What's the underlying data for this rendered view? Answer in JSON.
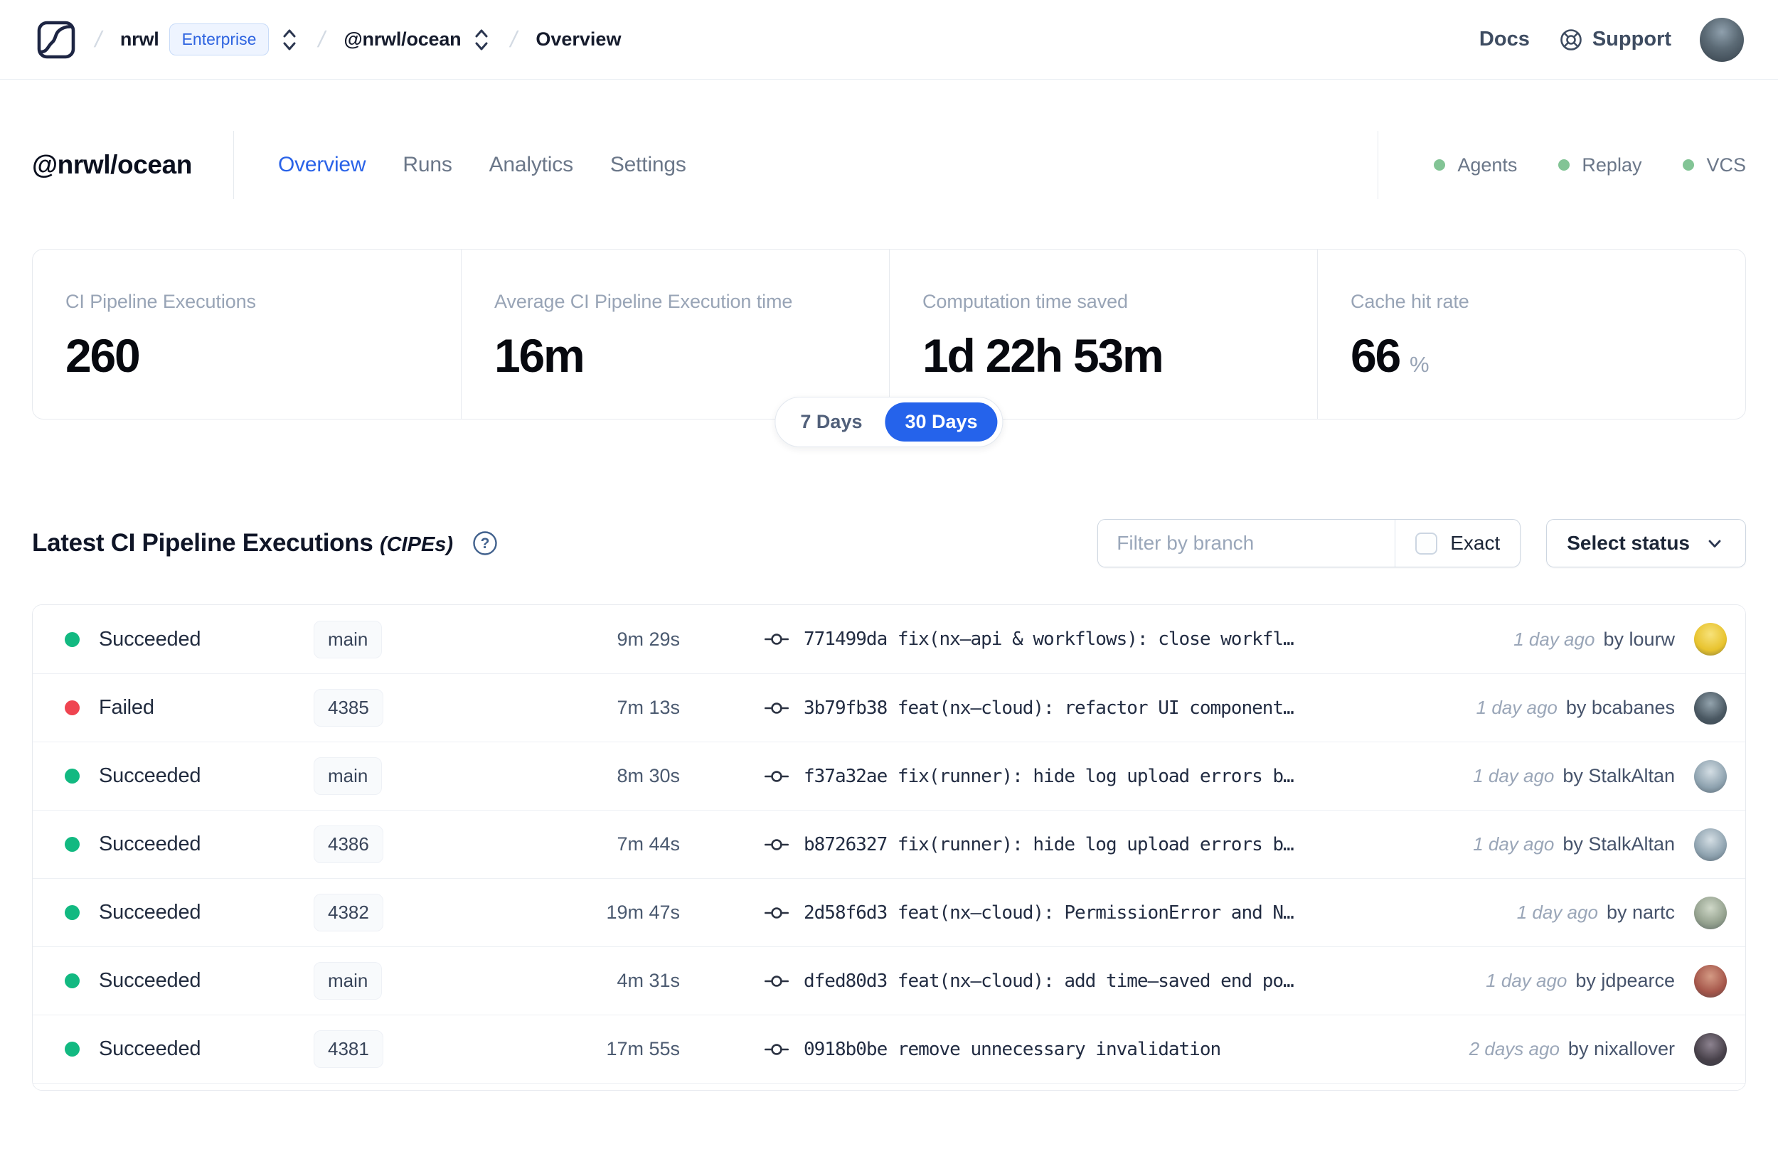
{
  "nav": {
    "breadcrumb": {
      "workspace": "nrwl",
      "plan_badge": "Enterprise",
      "project": "@nrwl/ocean",
      "page": "Overview"
    },
    "links": {
      "docs": "Docs",
      "support": "Support"
    }
  },
  "header": {
    "title": "@nrwl/ocean",
    "tabs": [
      {
        "label": "Overview",
        "active": true
      },
      {
        "label": "Runs",
        "active": false
      },
      {
        "label": "Analytics",
        "active": false
      },
      {
        "label": "Settings",
        "active": false
      }
    ],
    "statuses": [
      {
        "label": "Agents"
      },
      {
        "label": "Replay"
      },
      {
        "label": "VCS"
      }
    ],
    "status_dot_color": "#82c495"
  },
  "stats": {
    "cards": [
      {
        "label": "CI Pipeline Executions",
        "value": "260",
        "suffix": ""
      },
      {
        "label": "Average CI Pipeline Execution time",
        "value": "16m",
        "suffix": ""
      },
      {
        "label": "Computation time saved",
        "value": "1d 22h 53m",
        "suffix": ""
      },
      {
        "label": "Cache hit rate",
        "value": "66",
        "suffix": "%"
      }
    ],
    "range_toggle": {
      "options": [
        "7 Days",
        "30 Days"
      ],
      "selected": "30 Days",
      "accent": "#2563eb"
    }
  },
  "section": {
    "title": "Latest CI Pipeline Executions",
    "title_suffix": "(CIPEs)",
    "filter_placeholder": "Filter by branch",
    "exact_label": "Exact",
    "status_dropdown_label": "Select status"
  },
  "table": {
    "status_colors": {
      "succeeded": "#12b981",
      "failed": "#ef4450"
    },
    "rows": [
      {
        "status": "Succeeded",
        "status_color": "#12b981",
        "branch": "main",
        "duration": "9m 29s",
        "commit": "771499da fix(nx–api & workflows): close workfl…",
        "time": "1 day ago",
        "author": "by lourw",
        "avatar_color": "#e8c32e",
        "avatar_hi": "#f7e27a"
      },
      {
        "status": "Failed",
        "status_color": "#ef4450",
        "branch": "4385",
        "duration": "7m 13s",
        "commit": "3b79fb38 feat(nx–cloud): refactor UI component…",
        "time": "1 day ago",
        "author": "by bcabanes",
        "avatar_color": "#4a5862",
        "avatar_hi": "#93a3ad"
      },
      {
        "status": "Succeeded",
        "status_color": "#12b981",
        "branch": "main",
        "duration": "8m 30s",
        "commit": "f37a32ae fix(runner): hide log upload errors b…",
        "time": "1 day ago",
        "author": "by StalkAltan",
        "avatar_color": "#8ea2af",
        "avatar_hi": "#d4dee4"
      },
      {
        "status": "Succeeded",
        "status_color": "#12b981",
        "branch": "4386",
        "duration": "7m 44s",
        "commit": "b8726327 fix(runner): hide log upload errors b…",
        "time": "1 day ago",
        "author": "by StalkAltan",
        "avatar_color": "#8ea2af",
        "avatar_hi": "#d4dee4"
      },
      {
        "status": "Succeeded",
        "status_color": "#12b981",
        "branch": "4382",
        "duration": "19m 47s",
        "commit": "2d58f6d3 feat(nx–cloud): PermissionError and N…",
        "time": "1 day ago",
        "author": "by nartc",
        "avatar_color": "#93a08d",
        "avatar_hi": "#cfd8c8"
      },
      {
        "status": "Succeeded",
        "status_color": "#12b981",
        "branch": "main",
        "duration": "4m 31s",
        "commit": "dfed80d3 feat(nx–cloud): add time–saved end po…",
        "time": "1 day ago",
        "author": "by jdpearce",
        "avatar_color": "#a5564a",
        "avatar_hi": "#d49a84"
      },
      {
        "status": "Succeeded",
        "status_color": "#12b981",
        "branch": "4381",
        "duration": "17m 55s",
        "commit": "0918b0be remove unnecessary invalidation",
        "time": "2 days ago",
        "author": "by nixallover",
        "avatar_color": "#474049",
        "avatar_hi": "#8d8390"
      }
    ]
  }
}
